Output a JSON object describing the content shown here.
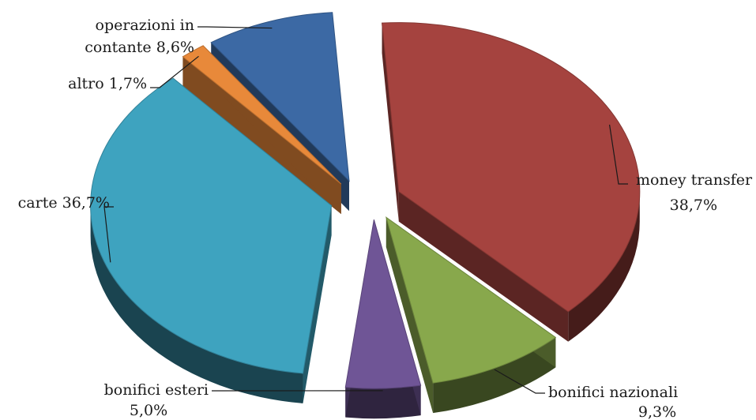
{
  "chart_data": {
    "type": "pie",
    "title": "",
    "style": "3d-exploded",
    "slices": [
      {
        "key": "money_transfer",
        "label_lines": [
          "money transfer",
          "38,7%"
        ],
        "value": 38.7,
        "color": "#a5433f"
      },
      {
        "key": "bonifici_nazionali",
        "label_lines": [
          "bonifici nazionali",
          "9,3%"
        ],
        "value": 9.3,
        "color": "#88a84c"
      },
      {
        "key": "bonifici_esteri",
        "label_lines": [
          "bonifici esteri",
          "5,0%"
        ],
        "value": 5.0,
        "color": "#6f5596"
      },
      {
        "key": "carte",
        "label_lines": [
          "carte 36,7%"
        ],
        "value": 36.7,
        "color": "#3ea3bf"
      },
      {
        "key": "altro",
        "label_lines": [
          "altro 1,7%"
        ],
        "value": 1.7,
        "color": "#e8893a"
      },
      {
        "key": "operazioni_contante",
        "label_lines": [
          "operazioni in",
          "contante 8,6%"
        ],
        "value": 8.6,
        "color": "#3c69a4"
      }
    ]
  }
}
